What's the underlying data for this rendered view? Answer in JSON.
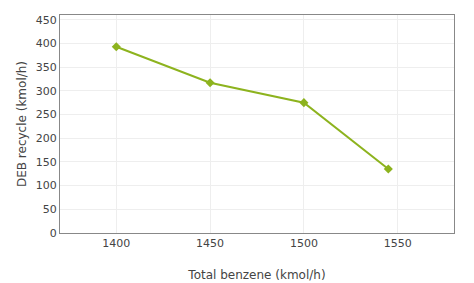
{
  "chart_data": {
    "type": "line",
    "x": [
      1400,
      1450,
      1500,
      1545
    ],
    "values": [
      393,
      317,
      275,
      135
    ],
    "color": "#8db31e",
    "marker": "diamond",
    "line_style": "solid",
    "xlabel": "Total benzene (kmol/h)",
    "ylabel": "DEB recycle (kmol/h)",
    "xlim": [
      1370,
      1580
    ],
    "ylim": [
      0,
      460
    ],
    "xticks": [
      1400,
      1450,
      1500,
      1550
    ],
    "yticks": [
      0,
      50,
      100,
      150,
      200,
      250,
      300,
      350,
      400,
      450
    ],
    "grid": true
  }
}
